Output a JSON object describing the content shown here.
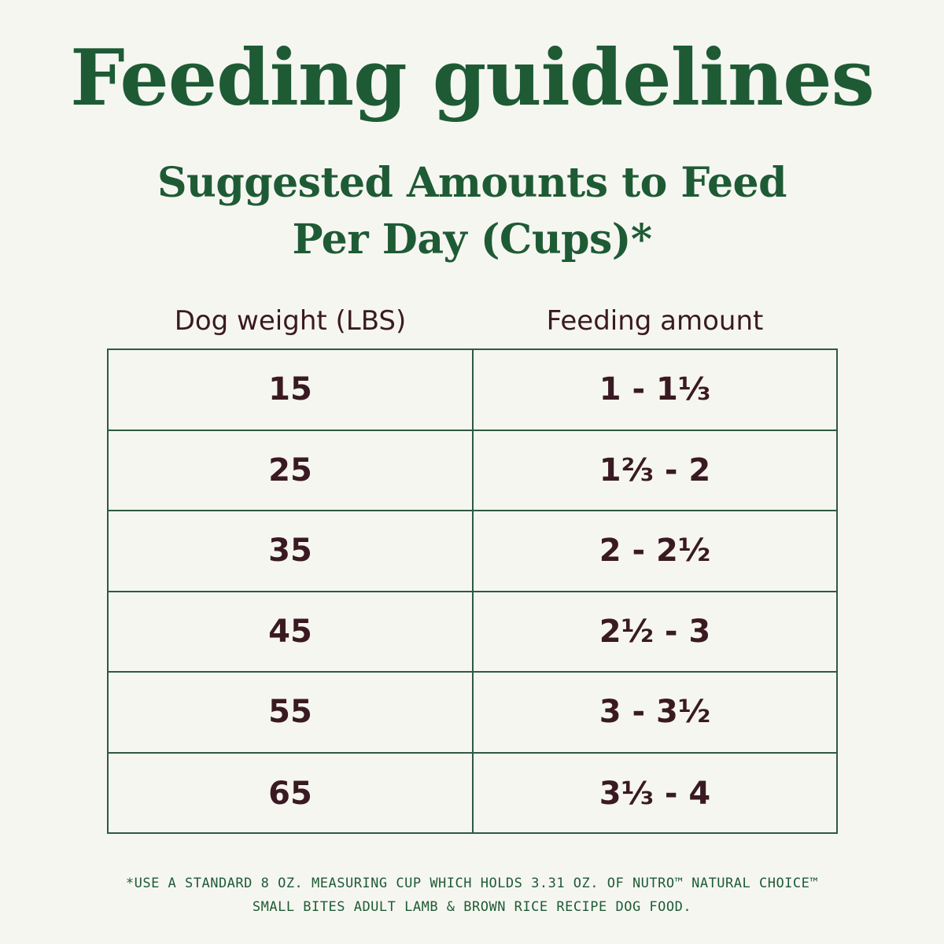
{
  "title": "Feeding guidelines",
  "subtitle": {
    "line1": "Suggested Amounts to Feed",
    "line2": "Per Day (Cups)*"
  },
  "table": {
    "headers": {
      "weight": "Dog weight (LBS)",
      "amount": "Feeding amount"
    },
    "rows": [
      {
        "weight": "15",
        "amount": "1 - 1⅓"
      },
      {
        "weight": "25",
        "amount": "1⅔ - 2"
      },
      {
        "weight": "35",
        "amount": "2 - 2½"
      },
      {
        "weight": "45",
        "amount": "2½ - 3"
      },
      {
        "weight": "55",
        "amount": "3 - 3½"
      },
      {
        "weight": "65",
        "amount": "3⅓ - 4"
      }
    ]
  },
  "footnote": {
    "line1": "*USE A STANDARD 8 OZ. MEASURING CUP WHICH HOLDS 3.31 OZ. OF NUTRO™ NATURAL CHOICE™",
    "line2": "SMALL BITES ADULT LAMB & BROWN RICE RECIPE DOG FOOD."
  },
  "colors": {
    "background": "#f6f6f1",
    "heading_green": "#1e5b35",
    "table_border": "#2e5a3e",
    "body_text": "#3a1a22"
  }
}
